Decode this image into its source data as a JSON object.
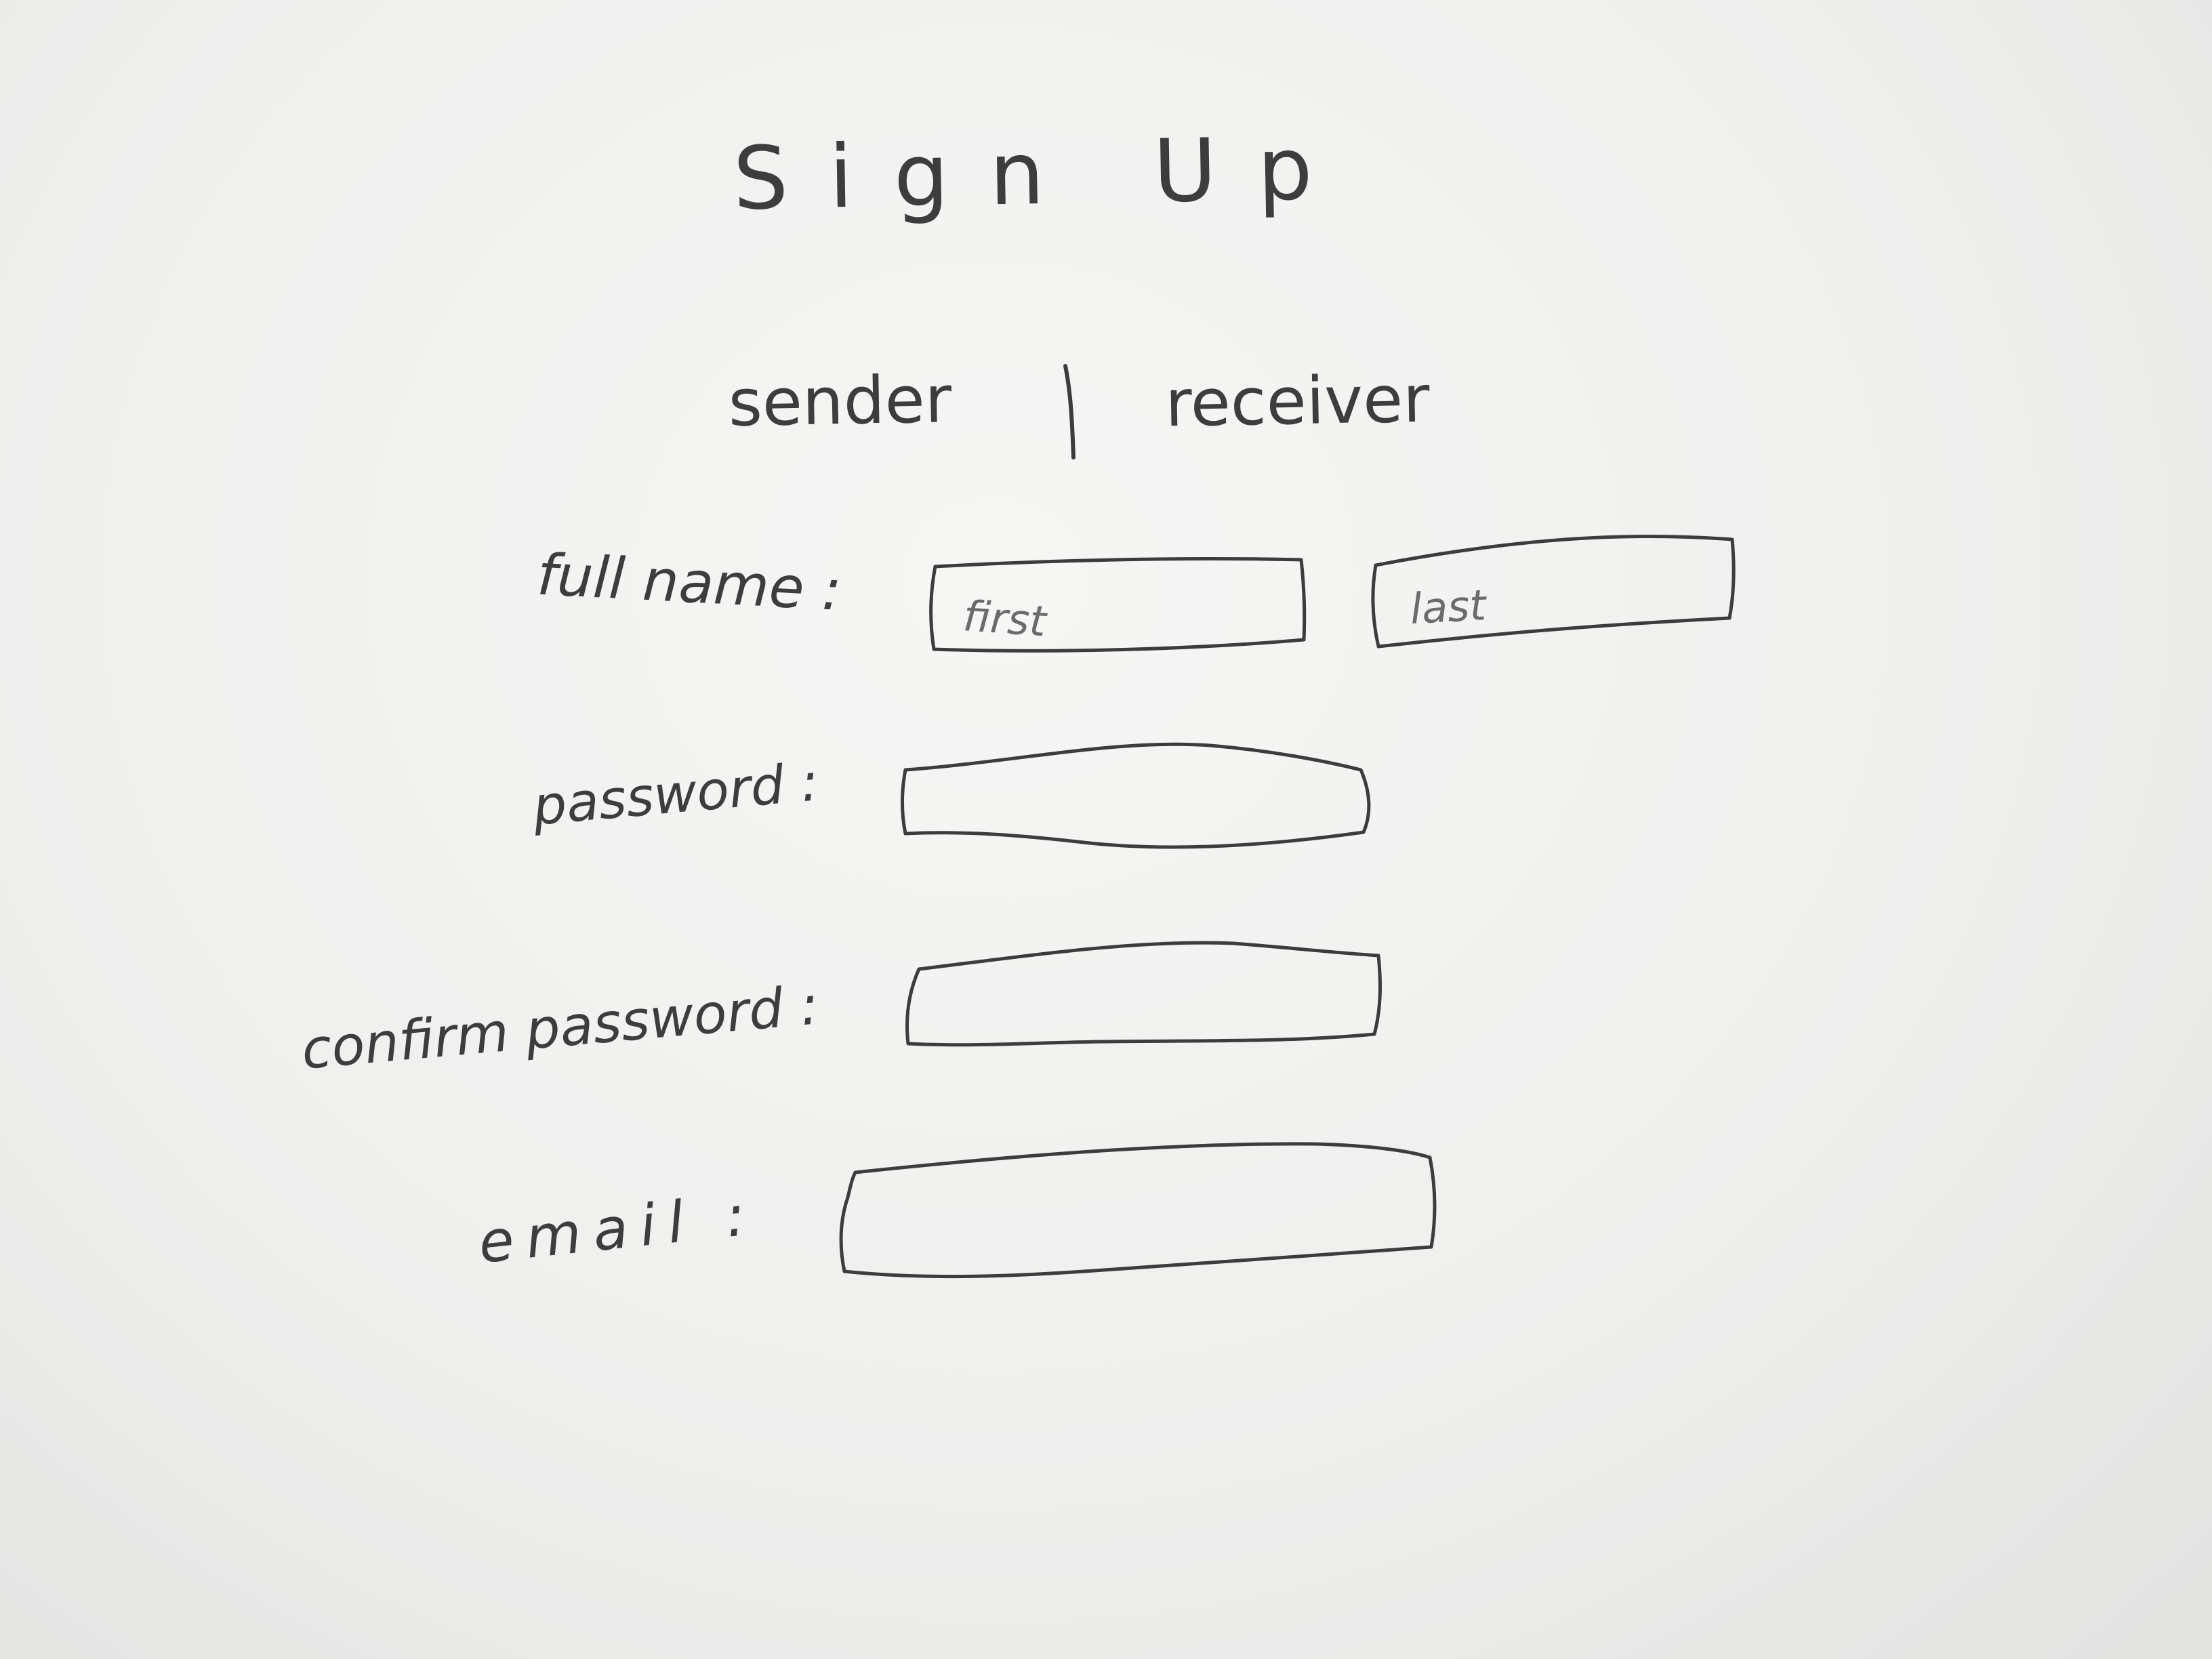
{
  "form": {
    "title": "Sign Up",
    "tabs": {
      "sender": "sender",
      "receiver": "receiver"
    },
    "labels": {
      "full_name": "full name :",
      "password": "password :",
      "confirm_password": "confirm password :",
      "email": "email :"
    },
    "placeholders": {
      "first": "first",
      "last": "last"
    },
    "values": {
      "first": "",
      "last": "",
      "password": "",
      "confirm_password": "",
      "email": ""
    }
  },
  "colors": {
    "ink": "#3c3c3c",
    "paper": "#f2f2f1"
  }
}
